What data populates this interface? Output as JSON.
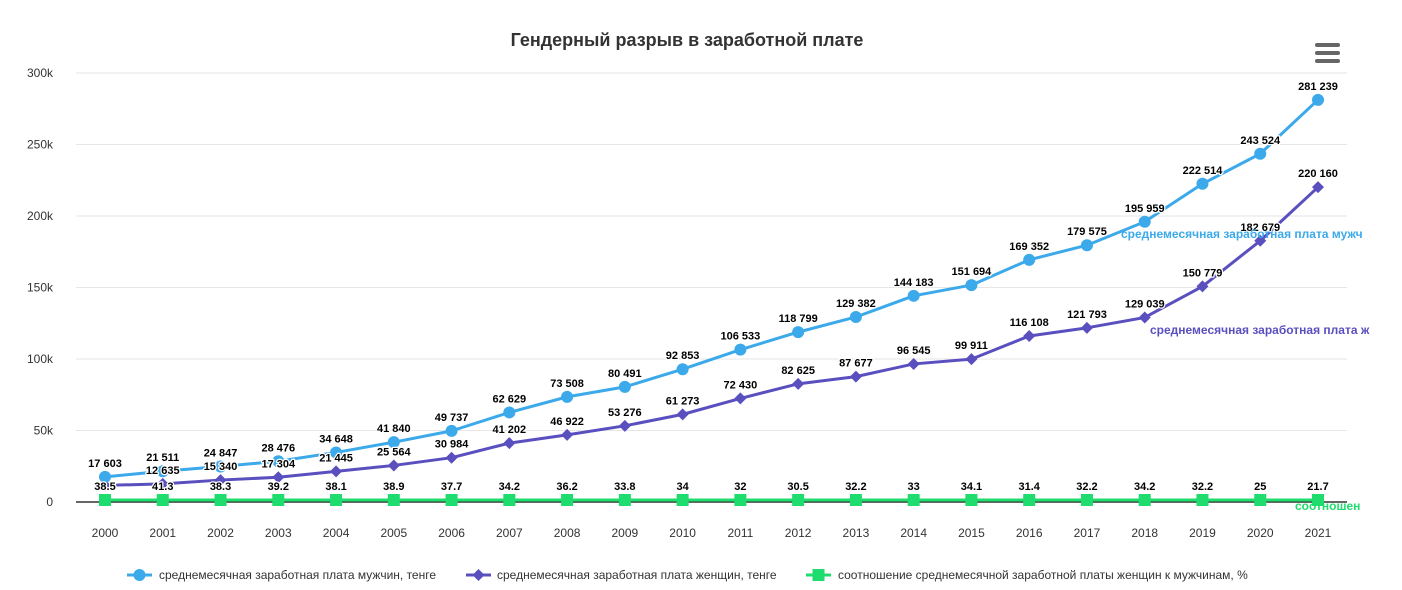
{
  "menu_icon": "hamburger-menu-icon",
  "chart_data": {
    "type": "line",
    "title": "Гендерный разрыв в заработной плате",
    "xlabel": "",
    "ylabel": "",
    "categories": [
      "2000",
      "2001",
      "2002",
      "2003",
      "2004",
      "2005",
      "2006",
      "2007",
      "2008",
      "2009",
      "2010",
      "2011",
      "2012",
      "2013",
      "2014",
      "2015",
      "2016",
      "2017",
      "2018",
      "2019",
      "2020",
      "2021"
    ],
    "ylim": [
      0,
      300000
    ],
    "yticks": [
      {
        "value": 0,
        "label": "0"
      },
      {
        "value": 50000,
        "label": "50k"
      },
      {
        "value": 100000,
        "label": "100k"
      },
      {
        "value": 150000,
        "label": "150k"
      },
      {
        "value": 200000,
        "label": "200k"
      },
      {
        "value": 250000,
        "label": "250k"
      },
      {
        "value": 300000,
        "label": "300k"
      }
    ],
    "grid": true,
    "legend_position": "bottom",
    "series": [
      {
        "name": "среднемесячная заработная плата мужчин, тенге",
        "end_label": "среднемесячная заработная плата мужч",
        "color": "#3ba9ea",
        "marker": "circle",
        "values": [
          17603,
          21511,
          24847,
          28476,
          34648,
          41840,
          49737,
          62629,
          73508,
          80491,
          92853,
          106533,
          118799,
          129382,
          144183,
          151694,
          169352,
          179575,
          195959,
          222514,
          243524,
          281239
        ],
        "labels": [
          "17 603",
          "21 511",
          "24 847",
          "28 476",
          "34 648",
          "41 840",
          "49 737",
          "62 629",
          "73 508",
          "80 491",
          "92 853",
          "106 533",
          "118 799",
          "129 382",
          "144 183",
          "151 694",
          "169 352",
          "179 575",
          "195 959",
          "222 514",
          "243 524",
          "281 239"
        ]
      },
      {
        "name": "среднемесячная заработная плата женщин, тенге",
        "end_label": "среднемесячная заработная плата ж",
        "color": "#5a4fbf",
        "marker": "diamond",
        "values": [
          11635,
          12635,
          15340,
          17304,
          21445,
          25564,
          30984,
          41202,
          46922,
          53276,
          61273,
          72430,
          82625,
          87677,
          96545,
          99911,
          116108,
          121793,
          129039,
          150779,
          182679,
          220160
        ],
        "labels": [
          "",
          "12 635",
          "15 340",
          "17 304",
          "21 445",
          "25 564",
          "30 984",
          "41 202",
          "46 922",
          "53 276",
          "61 273",
          "72 430",
          "82 625",
          "87 677",
          "96 545",
          "99 911",
          "116 108",
          "121 793",
          "129 039",
          "150 779",
          "182 679",
          "220 160"
        ]
      },
      {
        "name": "соотношение среднемесячной заработной платы женщин к мужчинам, %",
        "end_label": "соотношен",
        "color": "#1fdc6e",
        "marker": "square",
        "values": [
          38.5,
          41.3,
          38.3,
          39.2,
          38.1,
          38.9,
          37.7,
          34.2,
          36.2,
          33.8,
          34,
          32,
          30.5,
          32.2,
          33,
          34.1,
          31.4,
          32.2,
          34.2,
          32.2,
          25,
          21.7
        ],
        "labels": [
          "38.5",
          "41.3",
          "38.3",
          "39.2",
          "38.1",
          "38.9",
          "37.7",
          "34.2",
          "36.2",
          "33.8",
          "34",
          "32",
          "30.5",
          "32.2",
          "33",
          "34.1",
          "31.4",
          "32.2",
          "34.2",
          "32.2",
          "25",
          "21.7"
        ]
      }
    ]
  }
}
